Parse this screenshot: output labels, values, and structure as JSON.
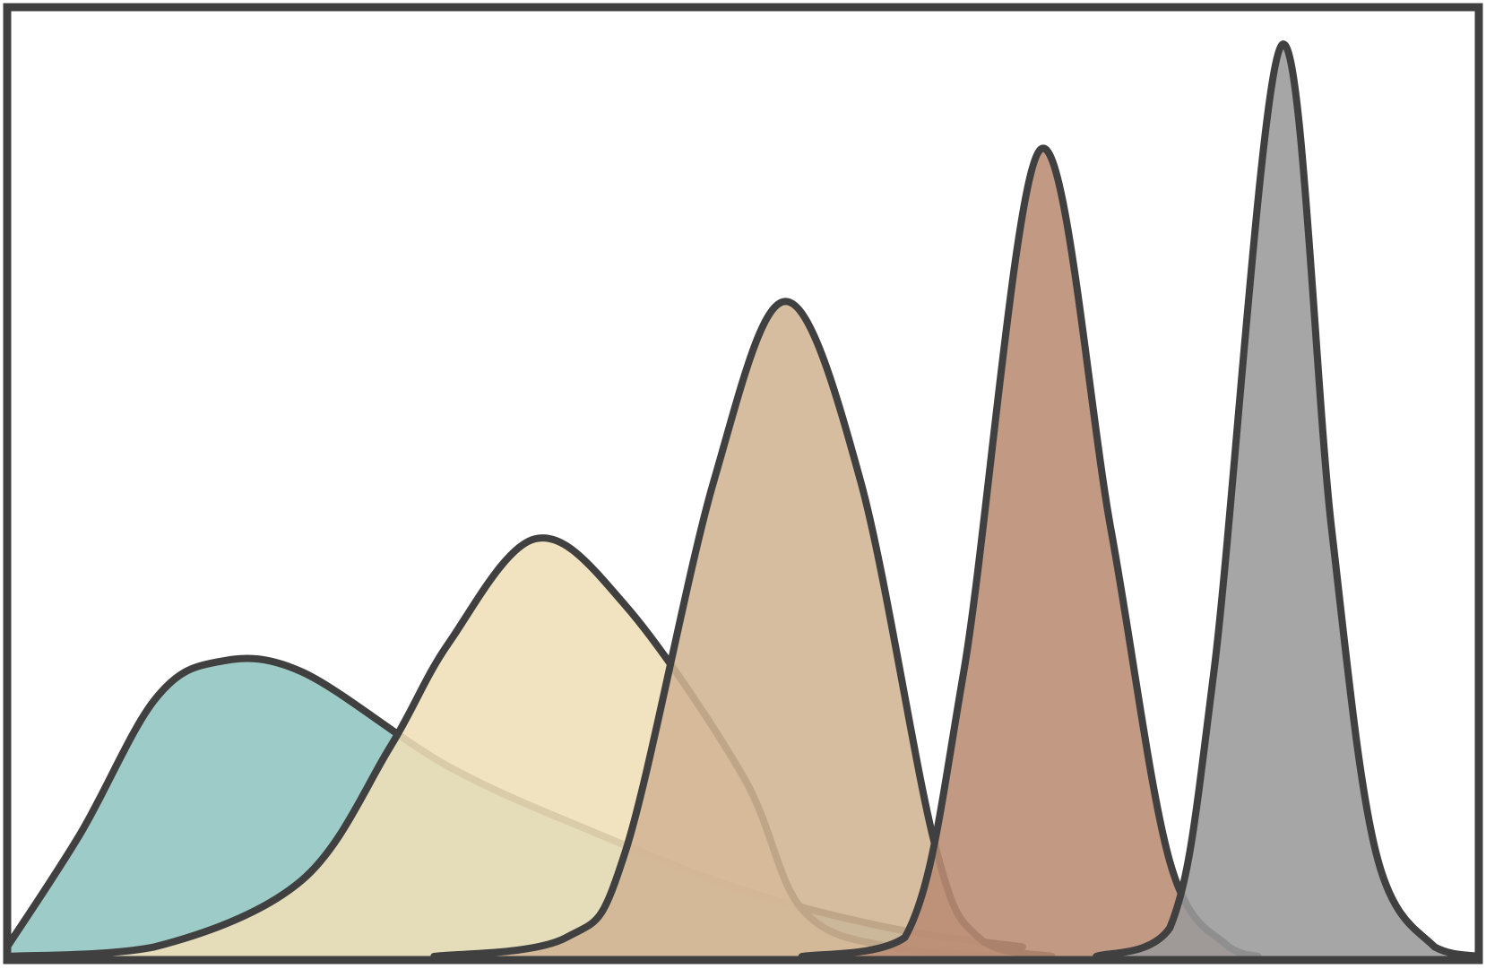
{
  "chart_data": {
    "type": "area",
    "title": "",
    "xlabel": "",
    "ylabel": "",
    "xlim": [
      0,
      10
    ],
    "ylim": [
      0,
      1
    ],
    "grid": false,
    "legend": "none",
    "series": [
      {
        "color": "#8fc4c0",
        "peak_x": 1.42,
        "peak_y": 0.31,
        "x_range": [
          0.0,
          6.9
        ],
        "x": [
          0.0,
          0.5,
          1.0,
          1.42,
          2.0,
          3.0,
          4.0,
          5.0,
          6.0,
          6.9
        ],
        "y": [
          0.01,
          0.13,
          0.27,
          0.31,
          0.3,
          0.2,
          0.13,
          0.07,
          0.03,
          0.01
        ]
      },
      {
        "color": "#efdfb7",
        "peak_x": 3.59,
        "peak_y": 0.44,
        "x_range": [
          0.0,
          6.9
        ],
        "x": [
          0.0,
          1.0,
          2.0,
          2.6,
          3.0,
          3.59,
          4.2,
          5.0,
          5.4,
          6.0,
          6.9
        ],
        "y": [
          0.0,
          0.01,
          0.08,
          0.22,
          0.33,
          0.44,
          0.37,
          0.19,
          0.05,
          0.01,
          0.0
        ]
      },
      {
        "color": "#d2b493",
        "peak_x": 5.29,
        "peak_y": 0.69,
        "x_range": [
          2.9,
          7.1
        ],
        "x": [
          2.9,
          3.8,
          4.2,
          4.8,
          5.29,
          5.8,
          6.3,
          6.6,
          7.1
        ],
        "y": [
          0.0,
          0.02,
          0.11,
          0.5,
          0.69,
          0.5,
          0.12,
          0.02,
          0.0
        ]
      },
      {
        "color": "#b98c73",
        "peak_x": 7.02,
        "peak_y": 0.85,
        "x_range": [
          5.4,
          8.5
        ],
        "x": [
          5.4,
          6.1,
          6.5,
          7.02,
          7.5,
          7.9,
          8.3,
          8.5
        ],
        "y": [
          0.0,
          0.02,
          0.3,
          0.85,
          0.45,
          0.1,
          0.01,
          0.0
        ]
      },
      {
        "color": "#9a9a9a",
        "peak_x": 8.66,
        "peak_y": 0.96,
        "x_range": [
          7.4,
          10.0
        ],
        "x": [
          7.4,
          7.9,
          8.2,
          8.66,
          9.0,
          9.3,
          9.7,
          10.0
        ],
        "y": [
          0.0,
          0.03,
          0.3,
          0.96,
          0.45,
          0.11,
          0.01,
          0.0
        ]
      }
    ]
  }
}
